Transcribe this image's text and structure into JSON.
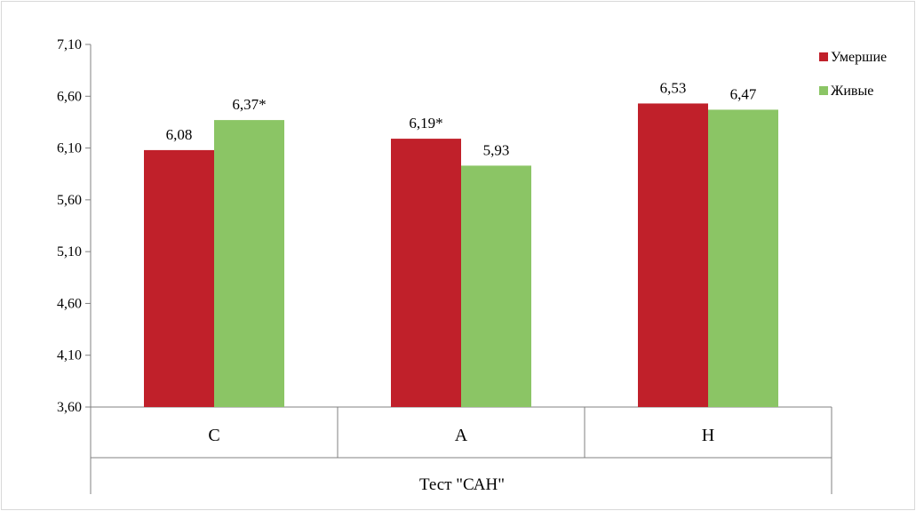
{
  "chart_data": {
    "type": "bar",
    "categories": [
      "С",
      "А",
      "Н"
    ],
    "series": [
      {
        "name": "Умершие",
        "values": [
          6.08,
          6.19,
          6.53
        ],
        "labels": [
          "6,08",
          "6,19*",
          "6,53"
        ],
        "color": "#c0202a"
      },
      {
        "name": "Живые",
        "values": [
          6.37,
          5.93,
          6.47
        ],
        "labels": [
          "6,37*",
          "5,93",
          "6,47"
        ],
        "color": "#8bc565"
      }
    ],
    "yticks": [
      "3,60",
      "4,10",
      "4,60",
      "5,10",
      "5,60",
      "6,10",
      "6,60",
      "7,10"
    ],
    "ytick_values": [
      3.6,
      4.1,
      4.6,
      5.1,
      5.6,
      6.1,
      6.6,
      7.1
    ],
    "ylim": [
      3.6,
      7.1
    ],
    "xlabel": "Тест \"САН\"",
    "ylabel": "",
    "title": "",
    "grid": false,
    "legend_position": "top-right"
  }
}
